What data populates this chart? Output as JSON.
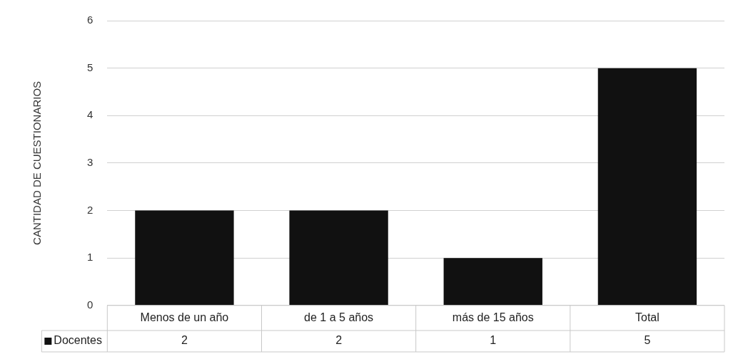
{
  "chart_data": {
    "type": "bar",
    "ylabel": "CANTIDAD DE CUESTIONARIOS",
    "categories": [
      "Menos de un año",
      "de 1 a 5 años",
      "más de 15 años",
      "Total"
    ],
    "series": [
      {
        "name": "Docentes",
        "color": "#111111",
        "values": [
          2,
          2,
          1,
          5
        ]
      }
    ],
    "ylim": [
      0,
      6
    ],
    "yticks": [
      0,
      1,
      2,
      3,
      4,
      5,
      6
    ],
    "grid": "y",
    "legend": "bottom",
    "data_labels": true
  }
}
